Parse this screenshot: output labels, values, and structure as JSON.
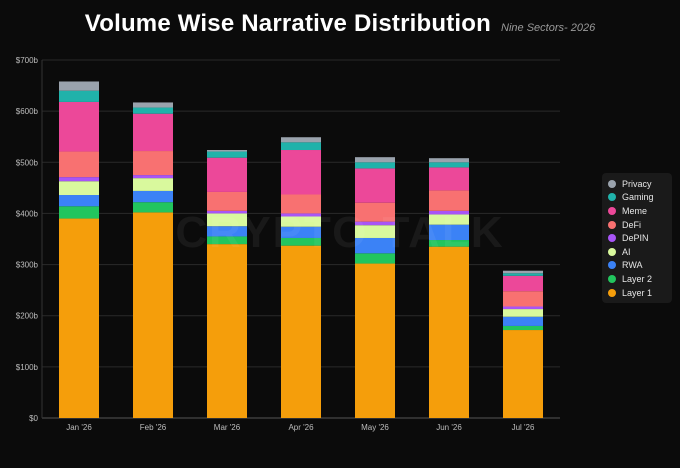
{
  "header": {
    "title": "Volume Wise Narrative Distribution",
    "subtitle": "Nine Sectors- 2026"
  },
  "watermark": "CRYPTO TALK",
  "colors": {
    "Privacy": "#9aa3ad",
    "Gaming": "#20b2aa",
    "Meme": "#ec4899",
    "DeFi": "#f87171",
    "DePIN": "#a855f7",
    "AI": "#d9f99d",
    "RWA": "#3b82f6",
    "Layer 2": "#22c55e",
    "Layer 1": "#f59e0b"
  },
  "legend_items": [
    "Privacy",
    "Gaming",
    "Meme",
    "DeFi",
    "DePIN",
    "AI",
    "RWA",
    "Layer 2",
    "Layer 1"
  ],
  "chart_data": {
    "type": "bar",
    "stacked": true,
    "title": "Volume Wise Narrative Distribution",
    "subtitle": "Nine Sectors- 2026",
    "xlabel": "",
    "ylabel": "",
    "ylim": [
      0,
      700
    ],
    "yticks": [
      0,
      100,
      200,
      300,
      400,
      500,
      600,
      700
    ],
    "ytick_labels": [
      "$0",
      "$100b",
      "$200b",
      "$300b",
      "$400b",
      "$500b",
      "$600b",
      "$700b"
    ],
    "grid": true,
    "legend_position": "right",
    "categories": [
      "Jan '26",
      "Feb '26",
      "Mar '26",
      "Apr '26",
      "May '26",
      "Jun '26",
      "Jul '26"
    ],
    "series": [
      {
        "name": "Layer 1",
        "values": [
          390,
          402,
          340,
          337,
          302,
          335,
          172
        ]
      },
      {
        "name": "Layer 2",
        "values": [
          24,
          20,
          15,
          15,
          20,
          13,
          8
        ]
      },
      {
        "name": "RWA",
        "values": [
          22,
          22,
          20,
          22,
          30,
          30,
          18
        ]
      },
      {
        "name": "AI",
        "values": [
          27,
          25,
          25,
          20,
          25,
          20,
          15
        ]
      },
      {
        "name": "DePIN",
        "values": [
          8,
          6,
          5,
          6,
          7,
          7,
          5
        ]
      },
      {
        "name": "DeFi",
        "values": [
          50,
          47,
          37,
          37,
          37,
          40,
          30
        ]
      },
      {
        "name": "Meme",
        "values": [
          97,
          73,
          67,
          87,
          67,
          45,
          30
        ]
      },
      {
        "name": "Gaming",
        "values": [
          22,
          12,
          12,
          15,
          12,
          10,
          5
        ]
      },
      {
        "name": "Privacy",
        "values": [
          18,
          10,
          3,
          10,
          10,
          8,
          5
        ]
      }
    ]
  }
}
